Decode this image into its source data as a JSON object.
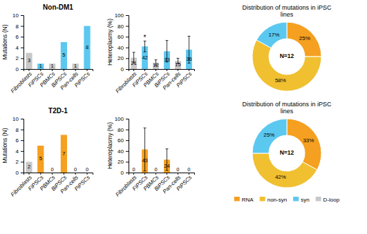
{
  "chart_data": [
    {
      "type": "bar",
      "title": "Non-DM1",
      "categories": [
        "Fibroblasts",
        "FiPSCs",
        "PBMCs",
        "BiPSCs",
        "Pan-cells",
        "PiPSCs"
      ],
      "values": [
        3,
        1,
        1,
        5,
        1,
        8
      ],
      "colors": [
        "#c8c8c8",
        "#5bc8f0",
        "#c8c8c8",
        "#5bc8f0",
        "#c8c8c8",
        "#5bc8f0"
      ],
      "ylabel": "Mutations (N)",
      "ylim": [
        0,
        10
      ],
      "yticks": [
        0,
        2,
        4,
        6,
        8,
        10
      ],
      "data_labels": true
    },
    {
      "type": "bar",
      "categories": [
        "Fibroblasts",
        "FiPSCs",
        "PBMCs",
        "BiPSCs",
        "Pan-cells",
        "PiPSCs"
      ],
      "values": [
        21,
        42,
        12,
        33,
        15,
        36
      ],
      "errors": [
        10,
        10,
        5,
        20,
        5,
        25
      ],
      "colors": [
        "#c8c8c8",
        "#5bc8f0",
        "#c8c8c8",
        "#5bc8f0",
        "#c8c8c8",
        "#5bc8f0"
      ],
      "ylabel": "Heteroplasmy (%)",
      "ylim": [
        0,
        100
      ],
      "yticks": [
        0,
        20,
        40,
        60,
        80,
        100
      ],
      "data_labels": true,
      "annotations": [
        {
          "text": "*",
          "category": "FiPSCs"
        }
      ]
    },
    {
      "type": "pie",
      "title": "Distribution of mutations in iPSC\nlines",
      "values": [
        25,
        58,
        17
      ],
      "value_labels": [
        "25%",
        "58%",
        "17%"
      ],
      "colors": [
        "#f5a020",
        "#f0c030",
        "#5bc8f0"
      ],
      "data_labels": true,
      "annotations": [
        {
          "text": "N=12"
        }
      ]
    },
    {
      "type": "bar",
      "title": "T2D-1",
      "categories": [
        "Fibroblasts",
        "FiPSCs",
        "PBMCs",
        "BiPSCs",
        "Pan-cells",
        "PiPSCs"
      ],
      "values": [
        2,
        5,
        0,
        7,
        0,
        0
      ],
      "colors": [
        "#c8c8c8",
        "#f5a020",
        "#c8c8c8",
        "#f5a020",
        "#c8c8c8",
        "#f5a020"
      ],
      "ylabel": "Mutations (N)",
      "ylim": [
        0,
        10
      ],
      "yticks": [
        0,
        2,
        4,
        6,
        8,
        10
      ],
      "data_labels": true
    },
    {
      "type": "bar",
      "categories": [
        "Fibroblasts",
        "FiPSCs",
        "PBMCs",
        "BiPSCs",
        "Pan-cells",
        "PiPSCs"
      ],
      "values": [
        0,
        43,
        0,
        24,
        0,
        0
      ],
      "errors": [
        0,
        40,
        0,
        20,
        0,
        0
      ],
      "colors": [
        "#c8c8c8",
        "#f5a020",
        "#c8c8c8",
        "#f5a020",
        "#c8c8c8",
        "#f5a020"
      ],
      "ylabel": "Heteroplasmy (%)",
      "ylim": [
        0,
        100
      ],
      "yticks": [
        0,
        20,
        40,
        60,
        80,
        100
      ],
      "data_labels": true
    },
    {
      "type": "pie",
      "title": "Distribution of mutations in iPSC\nlines",
      "values": [
        33,
        42,
        25
      ],
      "value_labels": [
        "33%",
        "42%",
        "25%"
      ],
      "colors": [
        "#f5a020",
        "#f0c030",
        "#5bc8f0"
      ],
      "data_labels": true,
      "annotations": [
        {
          "text": "N=12"
        }
      ],
      "legend": "bottom",
      "legend_items": [
        {
          "name": "RNA",
          "color": "#f5a020"
        },
        {
          "name": "non-syn",
          "color": "#f0c030"
        },
        {
          "name": "syn",
          "color": "#5bc8f0"
        },
        {
          "name": "D-loop",
          "color": "#c8c8c8"
        }
      ]
    }
  ]
}
